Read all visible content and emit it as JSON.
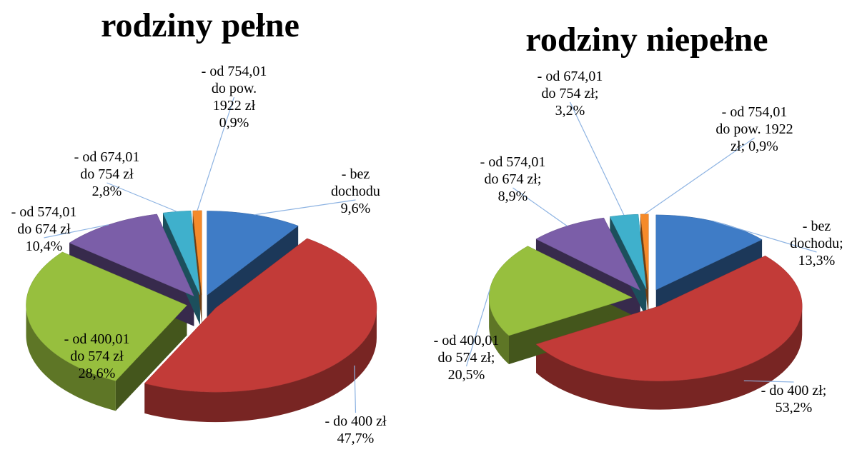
{
  "chart_data": [
    {
      "type": "pie",
      "title": "rodziny pełne",
      "categories": [
        "- bez dochodu",
        "- do 400 zł",
        "- od 400,01 do 574 zł",
        "- od 574,01 do 674 zł",
        "- od 674,01 do 754 zł",
        "- od 754,01 do pow. 1922 zł"
      ],
      "values": [
        9.6,
        47.7,
        28.6,
        10.4,
        2.8,
        0.9
      ],
      "value_labels": [
        "9,6%",
        "47,7%",
        "28,6%",
        "10,4%",
        "2,8%",
        "0,9%"
      ],
      "colors": [
        "#3f7cc6",
        "#c23b38",
        "#97bf3e",
        "#7b5ea8",
        "#3fb0cc",
        "#f58a2a"
      ]
    },
    {
      "type": "pie",
      "title": "rodziny niepełne",
      "categories": [
        "- bez dochodu;",
        "- do 400 zł;",
        "- od 400,01 do 574 zł;",
        "- od 574,01 do 674 zł;",
        "- od 674,01 do 754 zł;",
        "- od 754,01 do pow. 1922 zł;"
      ],
      "values": [
        13.3,
        53.2,
        20.5,
        8.9,
        3.2,
        0.9
      ],
      "value_labels": [
        "13,3%",
        "53,2%",
        "20,5%",
        "8,9%",
        "3,2%",
        "0,9%"
      ],
      "colors": [
        "#3f7cc6",
        "#c23b38",
        "#97bf3e",
        "#7b5ea8",
        "#3fb0cc",
        "#f58a2a"
      ]
    }
  ]
}
